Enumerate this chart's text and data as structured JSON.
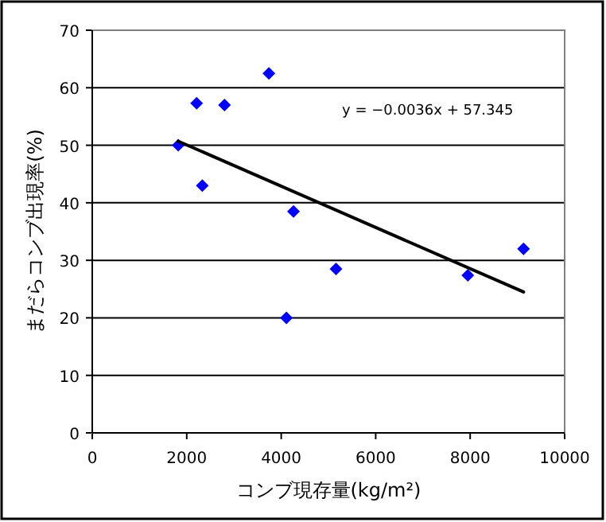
{
  "chart_data": {
    "type": "scatter",
    "xlabel": "コンブ現存量(kg/m²)",
    "ylabel": "まだらコンブ出現率(%)",
    "series": [
      {
        "color": "#0000ff",
        "marker": "diamond",
        "x": [
          1820,
          2210,
          2330,
          2800,
          3740,
          4110,
          4260,
          5160,
          7950,
          9130
        ],
        "values": [
          50.0,
          57.3,
          43.0,
          57.0,
          62.5,
          20.0,
          38.5,
          28.5,
          27.4,
          32.0
        ]
      },
      {
        "type": "line",
        "color": "#000000",
        "marker": "none",
        "line_style": "solid",
        "x": [
          1820,
          9130
        ],
        "values": [
          50.7,
          24.5
        ]
      }
    ],
    "annotations": [
      "y = −0.0036x + 57.345"
    ],
    "xlim": [
      0,
      10000
    ],
    "xticks": [
      0,
      2000,
      4000,
      6000,
      8000,
      10000
    ],
    "ylim": [
      0,
      70
    ],
    "yticks": [
      0,
      10,
      20,
      30,
      40,
      50,
      60,
      70
    ],
    "grid": "y"
  }
}
